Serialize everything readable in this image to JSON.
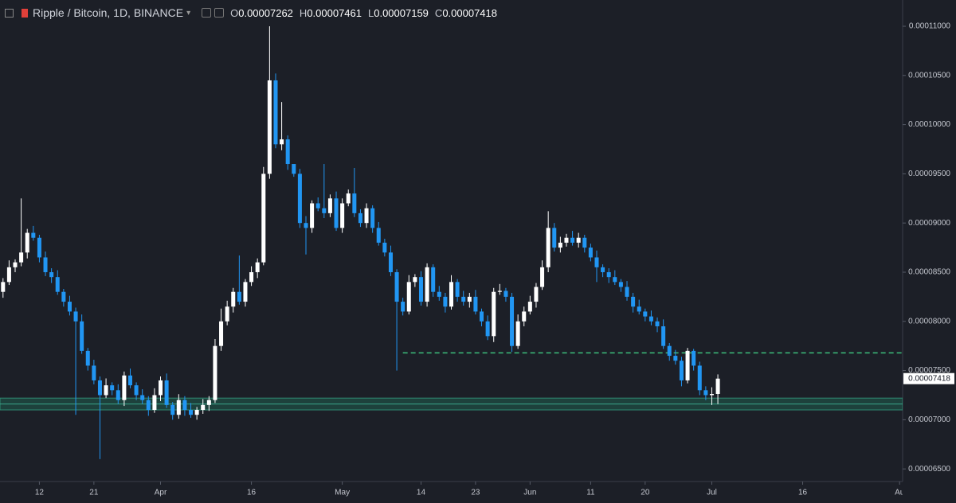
{
  "header": {
    "title": "Ripple / Bitcoin, 1D, BINANCE",
    "ohlc": [
      {
        "key": "O",
        "value": 7.262e-05,
        "label": "0.00007262"
      },
      {
        "key": "H",
        "value": 7.461e-05,
        "label": "0.00007461"
      },
      {
        "key": "L",
        "value": 7.159e-05,
        "label": "0.00007159"
      },
      {
        "key": "C",
        "value": 7.418e-05,
        "label": "0.00007418"
      }
    ]
  },
  "chart_data": {
    "type": "candlestick",
    "up_color": "#ffffff",
    "down_color": "#2196f3",
    "grid": false,
    "xlim": [
      -0.5,
      148.5
    ],
    "xticks": [
      {
        "value": 6,
        "label": "12"
      },
      {
        "value": 15,
        "label": "21"
      },
      {
        "value": 26,
        "label": "Apr"
      },
      {
        "value": 41,
        "label": "16"
      },
      {
        "value": 56,
        "label": "May"
      },
      {
        "value": 69,
        "label": "14"
      },
      {
        "value": 78,
        "label": "23"
      },
      {
        "value": 87,
        "label": "Jun"
      },
      {
        "value": 97,
        "label": "11"
      },
      {
        "value": 106,
        "label": "20"
      },
      {
        "value": 117,
        "label": "Jul"
      },
      {
        "value": 132,
        "label": "16"
      },
      {
        "value": 148,
        "label": "Au"
      }
    ],
    "ylim": [
      6.372e-05,
      0.00011267
    ],
    "yticks": [
      {
        "value": 6.5e-05,
        "label": "0.00006500"
      },
      {
        "value": 7e-05,
        "label": "0.00007000"
      },
      {
        "value": 7.5e-05,
        "label": "0.00007500"
      },
      {
        "value": 8e-05,
        "label": "0.00008000"
      },
      {
        "value": 8.5e-05,
        "label": "0.00008500"
      },
      {
        "value": 9e-05,
        "label": "0.00009000"
      },
      {
        "value": 9.5e-05,
        "label": "0.00009500"
      },
      {
        "value": 0.0001,
        "label": "0.00010000"
      },
      {
        "value": 0.000105,
        "label": "0.00010500"
      },
      {
        "value": 0.00011,
        "label": "0.00011000"
      }
    ],
    "last_price": {
      "value": 7.418e-05,
      "label": "0.00007418"
    },
    "level_line": {
      "value": 7.68e-05,
      "start": 66,
      "color": "#3cbf7c"
    },
    "zone": {
      "from": 7.1e-05,
      "to": 7.22e-05,
      "mid": 7.16e-05,
      "color": "#1f5c4e"
    },
    "open": [
      8.3e-05,
      8.4e-05,
      8.55e-05,
      8.6e-05,
      8.7e-05,
      8.9e-05,
      8.85e-05,
      8.65e-05,
      8.5e-05,
      8.45e-05,
      8.3e-05,
      8.2e-05,
      8.1e-05,
      8e-05,
      7.7e-05,
      7.55e-05,
      7.4e-05,
      7.25e-05,
      7.35e-05,
      7.3e-05,
      7.2e-05,
      7.45e-05,
      7.35e-05,
      7.25e-05,
      7.2e-05,
      7.1e-05,
      7.25e-05,
      7.4e-05,
      7.15e-05,
      7.05e-05,
      7.2e-05,
      7.1e-05,
      7.05e-05,
      7.1e-05,
      7.15e-05,
      7.2e-05,
      7.75e-05,
      8e-05,
      8.15e-05,
      8.3e-05,
      8.2e-05,
      8.4e-05,
      8.5e-05,
      8.6e-05,
      9.5e-05,
      0.0001045,
      9.8e-05,
      9.85e-05,
      9.6e-05,
      9.5e-05,
      9e-05,
      8.95e-05,
      9.2e-05,
      9.15e-05,
      9.1e-05,
      9.25e-05,
      8.95e-05,
      9.2e-05,
      9.3e-05,
      9.1e-05,
      9e-05,
      9.15e-05,
      8.95e-05,
      8.8e-05,
      8.7e-05,
      8.5e-05,
      8.2e-05,
      8.1e-05,
      8.4e-05,
      8.45e-05,
      8.2e-05,
      8.55e-05,
      8.3e-05,
      8.25e-05,
      8.15e-05,
      8.4e-05,
      8.25e-05,
      8.2e-05,
      8.25e-05,
      8.1e-05,
      8e-05,
      7.85e-05,
      8.3e-05,
      8.31e-05,
      8.25e-05,
      7.75e-05,
      8e-05,
      8.1e-05,
      8.2e-05,
      8.35e-05,
      8.55e-05,
      8.95e-05,
      8.75e-05,
      8.8e-05,
      8.85e-05,
      8.8e-05,
      8.85e-05,
      8.75e-05,
      8.65e-05,
      8.55e-05,
      8.5e-05,
      8.45e-05,
      8.4e-05,
      8.35e-05,
      8.25e-05,
      8.15e-05,
      8.1e-05,
      8.05e-05,
      8e-05,
      7.95e-05,
      7.75e-05,
      7.65e-05,
      7.6e-05,
      7.4e-05,
      7.7e-05,
      7.55e-05,
      7.3e-05,
      7.25e-05,
      7.262e-05
    ],
    "high": [
      8.44e-05,
      8.62e-05,
      8.63e-05,
      9.25e-05,
      8.94e-05,
      8.97e-05,
      8.88e-05,
      8.71e-05,
      8.54e-05,
      8.52e-05,
      8.33e-05,
      8.26e-05,
      8.14e-05,
      8.07e-05,
      7.73e-05,
      7.61e-05,
      7.44e-05,
      7.42e-05,
      7.38e-05,
      7.36e-05,
      7.49e-05,
      7.52e-05,
      7.38e-05,
      7.31e-05,
      7.24e-05,
      7.32e-05,
      7.44e-05,
      7.47e-05,
      7.18e-05,
      7.26e-05,
      7.24e-05,
      7.17e-05,
      7.13e-05,
      7.21e-05,
      7.24e-05,
      7.82e-05,
      8.13e-05,
      8.21e-05,
      8.34e-05,
      8.67e-05,
      8.43e-05,
      8.56e-05,
      8.64e-05,
      9.57e-05,
      0.00011,
      0.0001052,
      0.0001023,
      9.89e-05,
      9.56e-05,
      9.55e-05,
      9.07e-05,
      9.23e-05,
      9.26e-05,
      9.6e-05,
      9.29e-05,
      9.32e-05,
      9.25e-05,
      9.34e-05,
      9.56e-05,
      9.14e-05,
      9.2e-05,
      9.18e-05,
      9.01e-05,
      8.84e-05,
      8.77e-05,
      8.53e-05,
      8.24e-05,
      8.47e-05,
      8.48e-05,
      8.51e-05,
      8.59e-05,
      8.58e-05,
      8.36e-05,
      8.29e-05,
      8.47e-05,
      8.43e-05,
      8.31e-05,
      8.29e-05,
      8.32e-05,
      8.13e-05,
      8.06e-05,
      8.34e-05,
      8.38e-05,
      8.34e-05,
      8.29e-05,
      8.07e-05,
      8.15e-05,
      8.26e-05,
      8.39e-05,
      8.62e-05,
      9.12e-05,
      9e-05,
      8.86e-05,
      8.89e-05,
      8.92e-05,
      8.9e-05,
      8.88e-05,
      8.79e-05,
      8.72e-05,
      8.58e-05,
      8.54e-05,
      8.52e-05,
      8.43e-05,
      8.41e-05,
      8.29e-05,
      8.22e-05,
      8.13e-05,
      8.11e-05,
      8.04e-05,
      8.02e-05,
      7.78e-05,
      7.71e-05,
      7.64e-05,
      7.73e-05,
      7.72e-05,
      7.59e-05,
      7.34e-05,
      7.33e-05,
      7.461e-05
    ],
    "low": [
      8.24e-05,
      8.37e-05,
      8.5e-05,
      8.56e-05,
      8.64e-05,
      8.82e-05,
      8.6e-05,
      8.46e-05,
      8.39e-05,
      8.27e-05,
      8.15e-05,
      8.06e-05,
      7.05e-05,
      7.67e-05,
      7.5e-05,
      7.36e-05,
      6.6e-05,
      7.22e-05,
      7.25e-05,
      7.16e-05,
      7.14e-05,
      7.32e-05,
      7.2e-05,
      7.16e-05,
      7.04e-05,
      7.07e-05,
      7.19e-05,
      7.12e-05,
      7e-05,
      7.01e-05,
      7.04e-05,
      7.02e-05,
      7e-05,
      7.06e-05,
      7.09e-05,
      7.17e-05,
      7.7e-05,
      7.96e-05,
      8.09e-05,
      8.17e-05,
      8.15e-05,
      8.36e-05,
      8.44e-05,
      8.57e-05,
      9.45e-05,
      9.76e-05,
      9.74e-05,
      9.54e-05,
      9.47e-05,
      8.95e-05,
      8.68e-05,
      8.9e-05,
      9.12e-05,
      9.05e-05,
      9.06e-05,
      8.92e-05,
      8.9e-05,
      9.17e-05,
      9.06e-05,
      8.96e-05,
      8.95e-05,
      8.9e-05,
      8.77e-05,
      8.66e-05,
      8.46e-05,
      7.5e-05,
      8.06e-05,
      8.07e-05,
      8.35e-05,
      8.16e-05,
      8.15e-05,
      8.25e-05,
      8.21e-05,
      8.09e-05,
      8.12e-05,
      8.2e-05,
      8.16e-05,
      8.14e-05,
      8.07e-05,
      7.95e-05,
      7.81e-05,
      7.79e-05,
      8.27e-05,
      8.2e-05,
      7.69e-05,
      7.72e-05,
      7.95e-05,
      8.07e-05,
      8.14e-05,
      8.32e-05,
      8.5e-05,
      8.71e-05,
      8.7e-05,
      8.76e-05,
      8.77e-05,
      8.75e-05,
      8.7e-05,
      8.61e-05,
      8.4e-05,
      8.45e-05,
      8.39e-05,
      8.37e-05,
      8.3e-05,
      8.21e-05,
      8.09e-05,
      8.07e-05,
      8e-05,
      7.96e-05,
      7.89e-05,
      7.72e-05,
      7.6e-05,
      7.56e-05,
      7.34e-05,
      7.37e-05,
      7.5e-05,
      7.25e-05,
      7.2e-05,
      7.15e-05,
      7.159e-05
    ],
    "close": [
      8.4e-05,
      8.55e-05,
      8.6e-05,
      8.7e-05,
      8.9e-05,
      8.85e-05,
      8.65e-05,
      8.5e-05,
      8.45e-05,
      8.3e-05,
      8.2e-05,
      8.1e-05,
      8e-05,
      7.7e-05,
      7.55e-05,
      7.4e-05,
      7.25e-05,
      7.35e-05,
      7.3e-05,
      7.2e-05,
      7.45e-05,
      7.35e-05,
      7.25e-05,
      7.2e-05,
      7.1e-05,
      7.25e-05,
      7.4e-05,
      7.15e-05,
      7.05e-05,
      7.2e-05,
      7.1e-05,
      7.05e-05,
      7.1e-05,
      7.15e-05,
      7.2e-05,
      7.75e-05,
      8e-05,
      8.15e-05,
      8.3e-05,
      8.2e-05,
      8.4e-05,
      8.5e-05,
      8.6e-05,
      9.5e-05,
      0.0001045,
      9.8e-05,
      9.85e-05,
      9.6e-05,
      9.5e-05,
      9e-05,
      8.95e-05,
      9.2e-05,
      9.15e-05,
      9.1e-05,
      9.25e-05,
      8.95e-05,
      9.2e-05,
      9.3e-05,
      9.1e-05,
      9e-05,
      9.15e-05,
      8.95e-05,
      8.8e-05,
      8.7e-05,
      8.5e-05,
      8.2e-05,
      8.1e-05,
      8.4e-05,
      8.45e-05,
      8.2e-05,
      8.55e-05,
      8.3e-05,
      8.25e-05,
      8.15e-05,
      8.4e-05,
      8.25e-05,
      8.2e-05,
      8.25e-05,
      8.1e-05,
      8e-05,
      7.85e-05,
      8.3e-05,
      8.31e-05,
      8.25e-05,
      7.75e-05,
      8e-05,
      8.1e-05,
      8.2e-05,
      8.35e-05,
      8.55e-05,
      8.95e-05,
      8.75e-05,
      8.8e-05,
      8.85e-05,
      8.8e-05,
      8.85e-05,
      8.75e-05,
      8.65e-05,
      8.55e-05,
      8.5e-05,
      8.45e-05,
      8.4e-05,
      8.35e-05,
      8.25e-05,
      8.15e-05,
      8.1e-05,
      8.05e-05,
      8e-05,
      7.95e-05,
      7.75e-05,
      7.65e-05,
      7.6e-05,
      7.4e-05,
      7.7e-05,
      7.55e-05,
      7.3e-05,
      7.25e-05,
      7.262e-05,
      7.418e-05
    ]
  }
}
